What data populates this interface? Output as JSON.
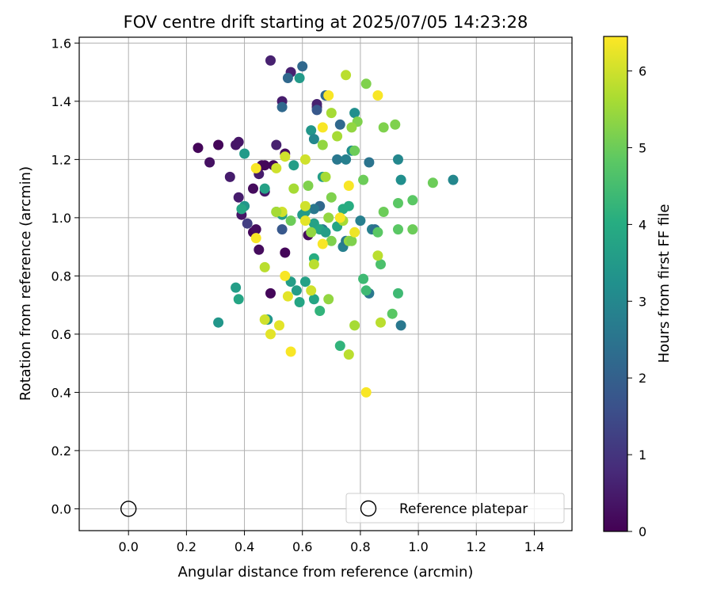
{
  "chart_data": {
    "type": "scatter",
    "title": "FOV centre drift starting at 2025/07/05 14:23:28",
    "xlabel": "Angular distance from reference (arcmin)",
    "ylabel": "Rotation from reference (arcmin)",
    "xlim": [
      -0.17,
      1.53
    ],
    "ylim": [
      -0.075,
      1.62
    ],
    "x_ticks": [
      "0.0",
      "0.2",
      "0.4",
      "0.6",
      "0.8",
      "1.0",
      "1.2",
      "1.4"
    ],
    "y_ticks": [
      "0.0",
      "0.2",
      "0.4",
      "0.6",
      "0.8",
      "1.0",
      "1.2",
      "1.4",
      "1.6"
    ],
    "grid": true,
    "colormap": "viridis",
    "colorbar": {
      "label": "Hours from first FF file",
      "min": 0,
      "max": 6.45,
      "ticks": [
        "0",
        "1",
        "2",
        "3",
        "4",
        "5",
        "6"
      ]
    },
    "legend": {
      "position": "bottom-right",
      "entries": [
        "Reference platepar"
      ]
    },
    "reference_point": {
      "x": 0.0,
      "y": 0.0
    },
    "points": [
      [
        0.24,
        1.24,
        0.1
      ],
      [
        0.31,
        1.25,
        0.1
      ],
      [
        0.28,
        1.19,
        0.3
      ],
      [
        0.37,
        1.25,
        0.4
      ],
      [
        0.38,
        1.26,
        0.4
      ],
      [
        0.49,
        1.54,
        0.6
      ],
      [
        0.56,
        1.5,
        0.6
      ],
      [
        0.53,
        1.4,
        0.5
      ],
      [
        0.65,
        1.38,
        0.4
      ],
      [
        0.65,
        1.39,
        0.6
      ],
      [
        0.35,
        1.14,
        0.5
      ],
      [
        0.38,
        1.07,
        0.5
      ],
      [
        0.43,
        1.1,
        0.2
      ],
      [
        0.45,
        1.15,
        0.5
      ],
      [
        0.46,
        1.18,
        0.2
      ],
      [
        0.47,
        1.18,
        0.1
      ],
      [
        0.5,
        1.18,
        0.1
      ],
      [
        0.47,
        1.09,
        0.4
      ],
      [
        0.51,
        1.25,
        0.6
      ],
      [
        0.54,
        1.22,
        0.2
      ],
      [
        0.39,
        1.01,
        0.4
      ],
      [
        0.41,
        0.98,
        1.2
      ],
      [
        0.43,
        0.95,
        0.1
      ],
      [
        0.44,
        0.96,
        0.2
      ],
      [
        0.45,
        0.89,
        0.2
      ],
      [
        0.49,
        0.74,
        0.1
      ],
      [
        0.54,
        0.88,
        0.1
      ],
      [
        0.62,
        0.94,
        0.2
      ],
      [
        0.53,
        0.96,
        1.8
      ],
      [
        0.55,
        1.48,
        2.2
      ],
      [
        0.6,
        1.52,
        2.2
      ],
      [
        0.53,
        1.38,
        2.2
      ],
      [
        0.65,
        1.37,
        1.8
      ],
      [
        0.68,
        1.42,
        2.2
      ],
      [
        0.73,
        1.32,
        2.2
      ],
      [
        0.72,
        1.2,
        2.6
      ],
      [
        0.75,
        1.2,
        2.8
      ],
      [
        0.83,
        1.19,
        2.5
      ],
      [
        0.66,
        1.04,
        2.2
      ],
      [
        0.64,
        1.03,
        2.6
      ],
      [
        0.67,
        0.96,
        2.6
      ],
      [
        0.74,
        0.9,
        2.8
      ],
      [
        0.75,
        0.92,
        2.6
      ],
      [
        0.8,
        0.99,
        2.8
      ],
      [
        0.84,
        0.96,
        2.8
      ],
      [
        0.85,
        0.96,
        2.4
      ],
      [
        0.83,
        0.74,
        2.6
      ],
      [
        0.94,
        0.63,
        2.6
      ],
      [
        1.12,
        1.13,
        3.0
      ],
      [
        0.94,
        1.13,
        3.2
      ],
      [
        0.93,
        1.2,
        3.0
      ],
      [
        0.78,
        1.36,
        3.2
      ],
      [
        0.77,
        1.23,
        3.2
      ],
      [
        0.63,
        1.3,
        3.4
      ],
      [
        0.64,
        1.27,
        3.0
      ],
      [
        0.59,
        1.48,
        3.5
      ],
      [
        0.4,
        1.22,
        3.5
      ],
      [
        0.4,
        1.04,
        3.4
      ],
      [
        0.39,
        1.03,
        3.8
      ],
      [
        0.47,
        1.1,
        3.7
      ],
      [
        0.51,
        1.02,
        3.5
      ],
      [
        0.53,
        1.01,
        3.6
      ],
      [
        0.57,
        1.18,
        3.6
      ],
      [
        0.6,
        1.01,
        3.5
      ],
      [
        0.61,
        1.02,
        3.5
      ],
      [
        0.64,
        0.98,
        3.7
      ],
      [
        0.66,
        0.96,
        3.8
      ],
      [
        0.68,
        0.95,
        3.6
      ],
      [
        0.67,
        1.14,
        3.6
      ],
      [
        0.72,
        0.97,
        3.8
      ],
      [
        0.76,
        1.04,
        4.0
      ],
      [
        0.74,
        1.03,
        4.0
      ],
      [
        0.37,
        0.76,
        3.6
      ],
      [
        0.38,
        0.72,
        3.8
      ],
      [
        0.31,
        0.64,
        3.4
      ],
      [
        0.48,
        0.65,
        3.4
      ],
      [
        0.56,
        0.78,
        3.6
      ],
      [
        0.58,
        0.75,
        3.6
      ],
      [
        0.59,
        0.71,
        3.8
      ],
      [
        0.61,
        0.78,
        3.7
      ],
      [
        0.64,
        0.72,
        3.8
      ],
      [
        0.66,
        0.68,
        4.2
      ],
      [
        0.64,
        0.86,
        4.0
      ],
      [
        0.73,
        0.56,
        4.2
      ],
      [
        0.81,
        0.79,
        4.4
      ],
      [
        0.82,
        0.75,
        4.4
      ],
      [
        0.93,
        0.74,
        4.4
      ],
      [
        0.91,
        0.67,
        4.8
      ],
      [
        0.87,
        0.84,
        4.6
      ],
      [
        0.86,
        0.95,
        4.8
      ],
      [
        0.93,
        0.96,
        4.8
      ],
      [
        0.98,
        0.96,
        5.0
      ],
      [
        0.98,
        1.06,
        4.8
      ],
      [
        0.93,
        1.05,
        4.8
      ],
      [
        1.05,
        1.12,
        5.0
      ],
      [
        0.88,
        1.02,
        5.0
      ],
      [
        0.81,
        1.13,
        5.0
      ],
      [
        0.79,
        1.33,
        5.2
      ],
      [
        0.82,
        1.46,
        5.2
      ],
      [
        0.88,
        1.31,
        5.2
      ],
      [
        0.92,
        1.32,
        5.2
      ],
      [
        0.78,
        1.23,
        5.0
      ],
      [
        0.7,
        1.36,
        5.6
      ],
      [
        0.67,
        1.25,
        5.4
      ],
      [
        0.72,
        1.28,
        5.6
      ],
      [
        0.77,
        1.31,
        5.4
      ],
      [
        0.75,
        1.49,
        5.8
      ],
      [
        0.7,
        1.07,
        5.2
      ],
      [
        0.68,
        1.14,
        5.6
      ],
      [
        0.62,
        1.11,
        5.2
      ],
      [
        0.57,
        1.1,
        5.6
      ],
      [
        0.56,
        0.99,
        5.0
      ],
      [
        0.63,
        0.95,
        5.4
      ],
      [
        0.69,
        1.0,
        5.4
      ],
      [
        0.74,
        0.99,
        5.6
      ],
      [
        0.76,
        0.92,
        5.4
      ],
      [
        0.77,
        0.92,
        5.2
      ],
      [
        0.7,
        0.92,
        5.2
      ],
      [
        0.64,
        0.84,
        5.8
      ],
      [
        0.47,
        0.83,
        5.8
      ],
      [
        0.63,
        0.75,
        6.0
      ],
      [
        0.69,
        0.72,
        5.4
      ],
      [
        0.78,
        0.63,
        5.6
      ],
      [
        0.76,
        0.53,
        5.8
      ],
      [
        0.87,
        0.64,
        5.8
      ],
      [
        0.86,
        0.87,
        5.8
      ],
      [
        0.51,
        1.17,
        6.0
      ],
      [
        0.53,
        1.02,
        6.0
      ],
      [
        0.51,
        1.02,
        5.6
      ],
      [
        0.54,
        1.21,
        6.0
      ],
      [
        0.61,
        1.2,
        6.0
      ],
      [
        0.61,
        1.04,
        6.0
      ],
      [
        0.61,
        0.99,
        6.2
      ],
      [
        0.67,
        1.31,
        6.4
      ],
      [
        0.69,
        1.42,
        6.4
      ],
      [
        0.86,
        1.42,
        6.4
      ],
      [
        0.76,
        1.11,
        6.4
      ],
      [
        0.73,
        1.0,
        6.4
      ],
      [
        0.78,
        0.95,
        6.3
      ],
      [
        0.67,
        0.91,
        6.4
      ],
      [
        0.44,
        1.17,
        6.4
      ],
      [
        0.44,
        0.93,
        6.4
      ],
      [
        0.54,
        0.8,
        6.4
      ],
      [
        0.55,
        0.73,
        6.2
      ],
      [
        0.47,
        0.65,
        6.0
      ],
      [
        0.49,
        0.6,
        6.2
      ],
      [
        0.52,
        0.63,
        6.2
      ],
      [
        0.56,
        0.54,
        6.4
      ],
      [
        0.82,
        0.4,
        6.4
      ]
    ]
  }
}
